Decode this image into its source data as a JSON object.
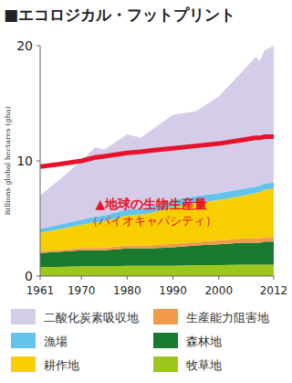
{
  "chart_data": {
    "type": "area",
    "title": "■エコロジカル・フットプリント",
    "y_label": "Billions global hectares (gha)",
    "stacked": true,
    "grid": false,
    "x": [
      1961,
      1965,
      1970,
      1973,
      1975,
      1980,
      1983,
      1985,
      1990,
      1995,
      2000,
      2005,
      2008,
      2009,
      2010,
      2012
    ],
    "xlim": [
      1961,
      2012
    ],
    "xticks": [
      1961,
      1970,
      1980,
      1990,
      2000,
      2012
    ],
    "ylim": [
      0,
      20
    ],
    "yticks": [
      0,
      10,
      20
    ],
    "annotations": [
      "（バイオキャパシティ）"
    ],
    "series": [
      {
        "name": "牧草地",
        "color": "#9cc81e",
        "values": [
          0.8,
          0.8,
          0.85,
          0.85,
          0.85,
          0.9,
          0.9,
          0.9,
          0.9,
          0.95,
          0.95,
          1.0,
          1.0,
          1.0,
          1.0,
          1.0
        ]
      },
      {
        "name": "森林地",
        "color": "#1a7a2f",
        "values": [
          1.2,
          1.3,
          1.4,
          1.4,
          1.4,
          1.5,
          1.5,
          1.5,
          1.6,
          1.7,
          1.8,
          1.9,
          1.9,
          1.9,
          2.0,
          2.0
        ]
      },
      {
        "name": "生産能力阻害地",
        "color": "#f39a4a",
        "values": [
          0.15,
          0.15,
          0.2,
          0.2,
          0.2,
          0.25,
          0.25,
          0.25,
          0.3,
          0.3,
          0.35,
          0.35,
          0.4,
          0.4,
          0.4,
          0.4
        ]
      },
      {
        "name": "耕作地",
        "color": "#f7cf00",
        "values": [
          1.6,
          1.8,
          2.0,
          2.2,
          2.3,
          2.6,
          2.7,
          2.8,
          3.2,
          3.4,
          3.5,
          3.7,
          3.9,
          4.0,
          4.1,
          4.2
        ]
      },
      {
        "name": "漁場",
        "color": "#62c4ea",
        "values": [
          0.35,
          0.4,
          0.45,
          0.5,
          0.5,
          0.55,
          0.5,
          0.55,
          0.6,
          0.6,
          0.6,
          0.6,
          0.55,
          0.55,
          0.55,
          0.5
        ]
      },
      {
        "name": "二酸化炭素吸収地",
        "color": "#d4cce9",
        "values": [
          2.9,
          3.85,
          5.1,
          6.05,
          5.75,
          6.5,
          6.15,
          6.6,
          7.4,
          7.35,
          8.4,
          10.15,
          11.25,
          10.85,
          11.55,
          11.9
        ]
      },
      {
        "name": "▲地球の生物生産量",
        "type": "line",
        "color": "#e8132a",
        "values": [
          9.5,
          9.7,
          10.0,
          10.3,
          10.4,
          10.7,
          10.8,
          10.9,
          11.1,
          11.3,
          11.5,
          11.8,
          12.0,
          12.0,
          12.1,
          12.1
        ]
      }
    ]
  }
}
